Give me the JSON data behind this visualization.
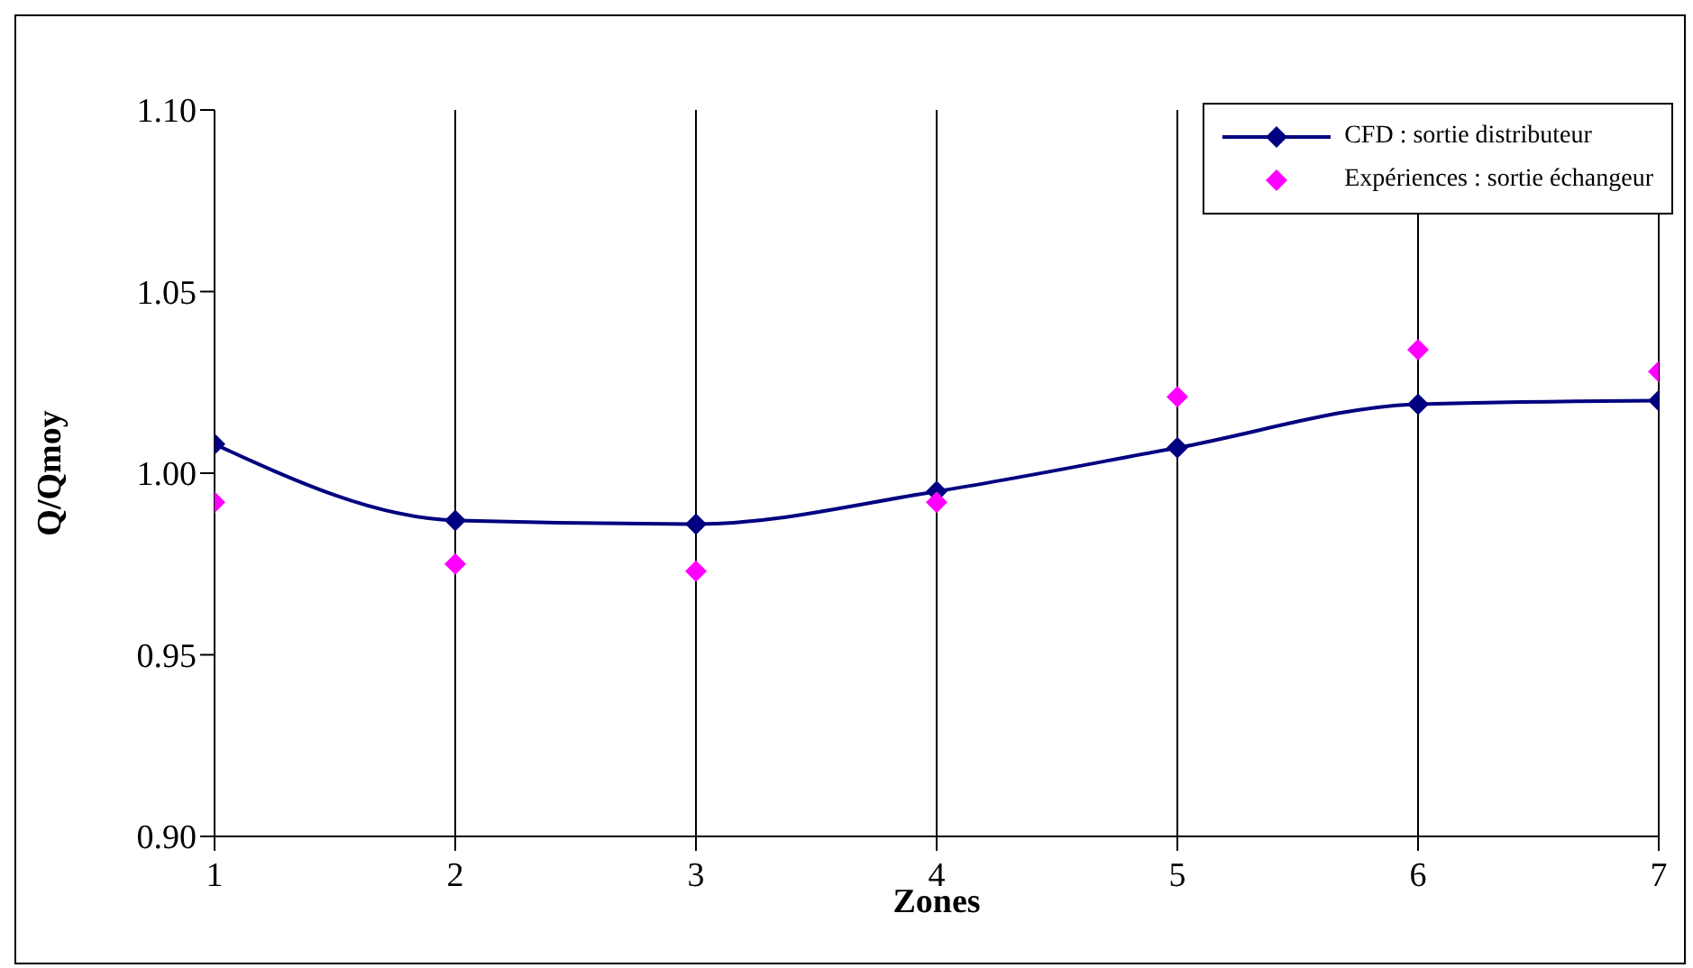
{
  "chart_data": {
    "type": "line",
    "xlabel": "Zones",
    "ylabel": "Q/Qmoy",
    "x": [
      1,
      2,
      3,
      4,
      5,
      6,
      7
    ],
    "xlim": [
      1,
      7
    ],
    "xticks": [
      1,
      2,
      3,
      4,
      5,
      6,
      7
    ],
    "ylim": [
      0.9,
      1.1
    ],
    "yticks": [
      {
        "value": 0.9,
        "label": "0.90"
      },
      {
        "value": 0.95,
        "label": "0.95"
      },
      {
        "value": 1.0,
        "label": "1.00"
      },
      {
        "value": 1.05,
        "label": "1.05"
      },
      {
        "value": 1.1,
        "label": "1.10"
      }
    ],
    "grid": "x",
    "legend": "top right",
    "marker": "diamond",
    "series": [
      {
        "name": "CFD : sortie distributeur",
        "color": "#000080",
        "values": [
          1.008,
          0.987,
          0.986,
          0.995,
          1.007,
          1.019,
          1.02
        ]
      },
      {
        "name": "Expériences : sortie échangeur",
        "type": "scatter",
        "color": "#ff00ff",
        "values": [
          0.992,
          0.975,
          0.973,
          0.992,
          1.021,
          1.034,
          1.028
        ]
      }
    ]
  }
}
